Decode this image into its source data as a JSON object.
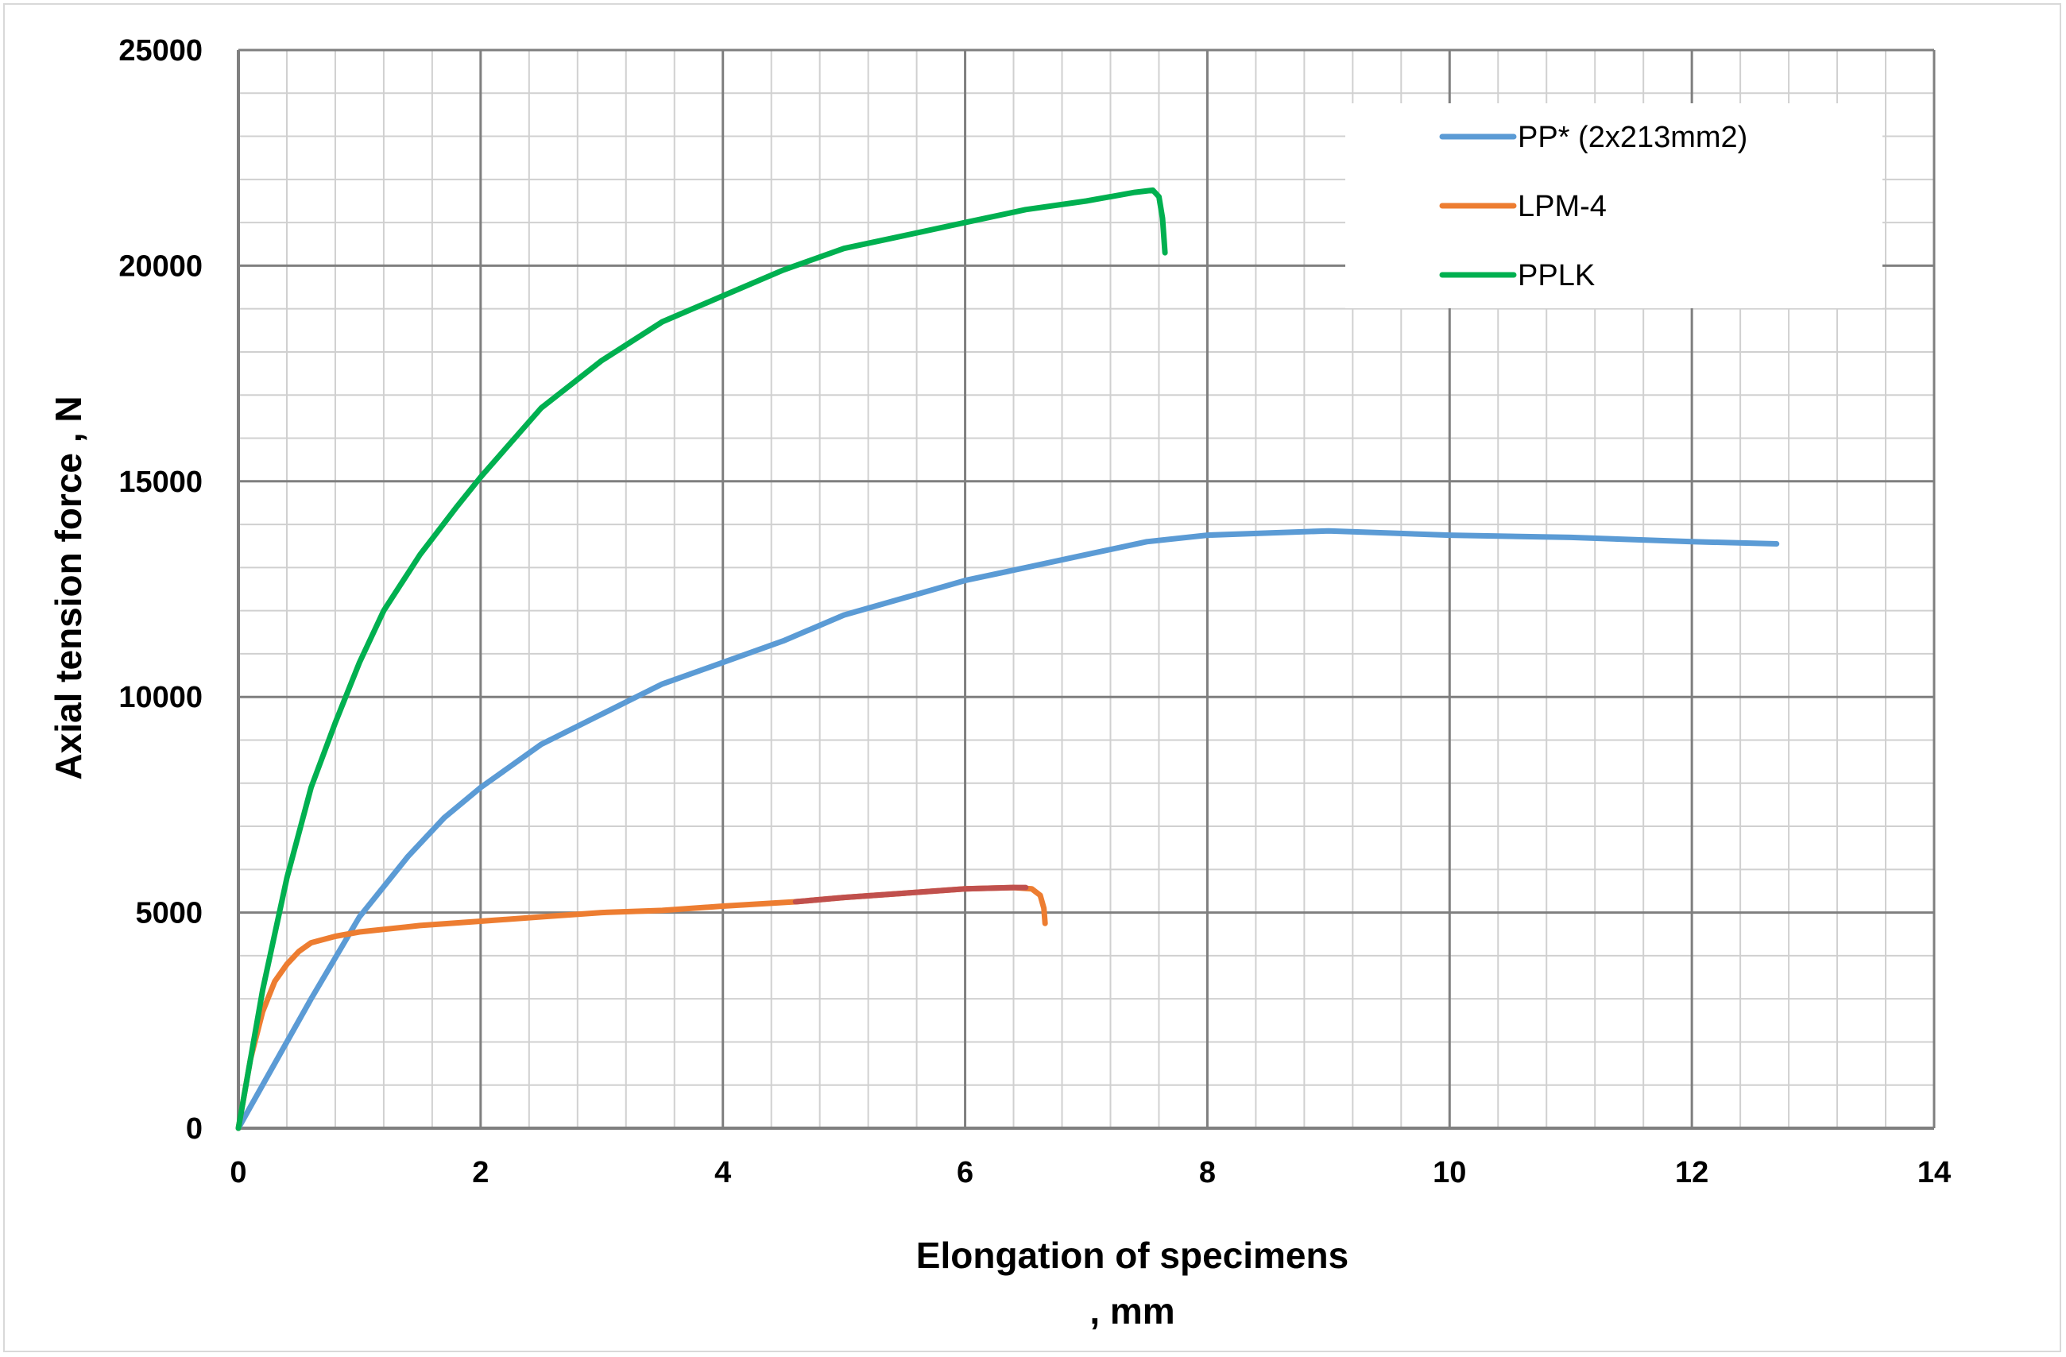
{
  "chart_data": {
    "type": "line",
    "xlabel_line1": "Elongation of specimens",
    "xlabel_line2": ", mm",
    "ylabel": "Axial tension force , N",
    "xlim": [
      0,
      14
    ],
    "ylim": [
      0,
      25000
    ],
    "x_ticks": [
      "0",
      "2",
      "4",
      "6",
      "8",
      "10",
      "12",
      "14"
    ],
    "y_ticks": [
      "0",
      "5000",
      "10000",
      "15000",
      "20000",
      "25000"
    ],
    "major_x_step": 2,
    "major_y_step": 5000,
    "minor_x_step": 0.4,
    "minor_y_step": 1000,
    "grid": true,
    "legend_position": "top-right",
    "series": [
      {
        "name": "PP* (2x213mm2)",
        "color": "#5b9bd5",
        "x": [
          0,
          0.3,
          0.6,
          1.0,
          1.4,
          1.7,
          2.0,
          2.5,
          3.0,
          3.5,
          4.0,
          4.5,
          5.0,
          5.5,
          6.0,
          6.5,
          7.0,
          7.5,
          8.0,
          8.5,
          9.0,
          9.5,
          10.0,
          11.0,
          12.0,
          12.7
        ],
        "y": [
          0,
          1500,
          3000,
          4900,
          6300,
          7200,
          7900,
          8900,
          9600,
          10300,
          10800,
          11300,
          11900,
          12300,
          12700,
          13000,
          13300,
          13600,
          13750,
          13800,
          13850,
          13800,
          13750,
          13700,
          13600,
          13550
        ]
      },
      {
        "name": "LPM-4",
        "color": "#ed7d31",
        "x": [
          0,
          0.1,
          0.2,
          0.3,
          0.4,
          0.5,
          0.6,
          0.8,
          1.0,
          1.5,
          2.0,
          2.5,
          3.0,
          3.5,
          4.0,
          4.6,
          5.0,
          5.5,
          6.0,
          6.4,
          6.55,
          6.62,
          6.65,
          6.66
        ],
        "y": [
          0,
          1600,
          2700,
          3400,
          3800,
          4100,
          4300,
          4450,
          4550,
          4700,
          4800,
          4900,
          5000,
          5050,
          5150,
          5250,
          5350,
          5450,
          5550,
          5580,
          5550,
          5400,
          5100,
          4750
        ]
      },
      {
        "name": "",
        "legend": false,
        "color": "#c0504d",
        "x": [
          4.6,
          5.0,
          5.5,
          6.0,
          6.4,
          6.5
        ],
        "y": [
          5250,
          5350,
          5450,
          5550,
          5580,
          5580
        ]
      },
      {
        "name": "PPLK",
        "color": "#00b050",
        "x": [
          0,
          0.2,
          0.4,
          0.6,
          0.8,
          1.0,
          1.2,
          1.5,
          1.8,
          2.0,
          2.5,
          3.0,
          3.5,
          4.0,
          4.5,
          5.0,
          5.5,
          6.0,
          6.5,
          7.0,
          7.4,
          7.55,
          7.6,
          7.63,
          7.65
        ],
        "y": [
          0,
          3200,
          5800,
          7900,
          9400,
          10800,
          12000,
          13300,
          14400,
          15100,
          16700,
          17800,
          18700,
          19300,
          19900,
          20400,
          20700,
          21000,
          21300,
          21500,
          21700,
          21750,
          21600,
          21100,
          20300
        ]
      }
    ]
  }
}
